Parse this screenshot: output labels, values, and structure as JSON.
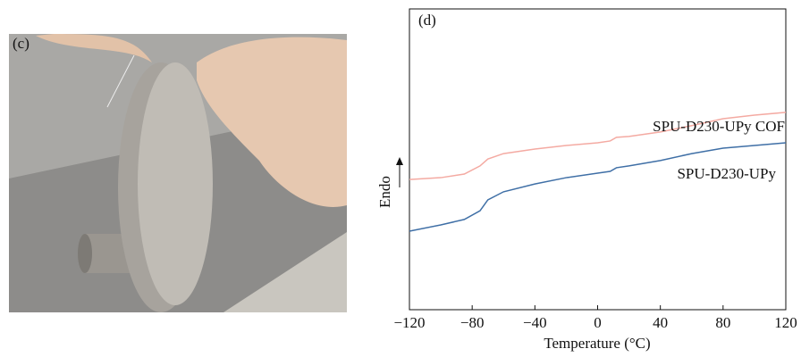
{
  "photo": {
    "label": "(c)"
  },
  "chart_data": {
    "type": "line",
    "title": "(d)",
    "x_label": "Temperature (°C)",
    "y_label": "Endo",
    "x": [
      -120,
      -100,
      -85,
      -75,
      -70,
      -60,
      -40,
      -20,
      0,
      8,
      12,
      20,
      40,
      60,
      80,
      100,
      120
    ],
    "series": [
      {
        "name": "SPU-D230-UPy COF",
        "color": "#f4aaa2",
        "values": [
          43.3,
          43.9,
          45.1,
          47.8,
          50.1,
          51.9,
          53.4,
          54.6,
          55.5,
          56.1,
          57.3,
          57.6,
          59.1,
          61.2,
          63.5,
          64.7,
          65.6
        ]
      },
      {
        "name": "SPU-D230-UPy",
        "color": "#3f6fa6",
        "values": [
          26.1,
          28.2,
          30.0,
          32.9,
          36.5,
          39.2,
          41.8,
          43.9,
          45.4,
          46.0,
          47.2,
          47.8,
          49.6,
          51.9,
          53.7,
          54.6,
          55.5
        ]
      }
    ],
    "xlim": [
      -120,
      120
    ],
    "xticks": [
      {
        "value": -120,
        "label": "−120"
      },
      {
        "value": -80,
        "label": "−80"
      },
      {
        "value": -40,
        "label": "−40"
      },
      0,
      40,
      80,
      120
    ],
    "ylim": [
      0,
      100
    ]
  }
}
